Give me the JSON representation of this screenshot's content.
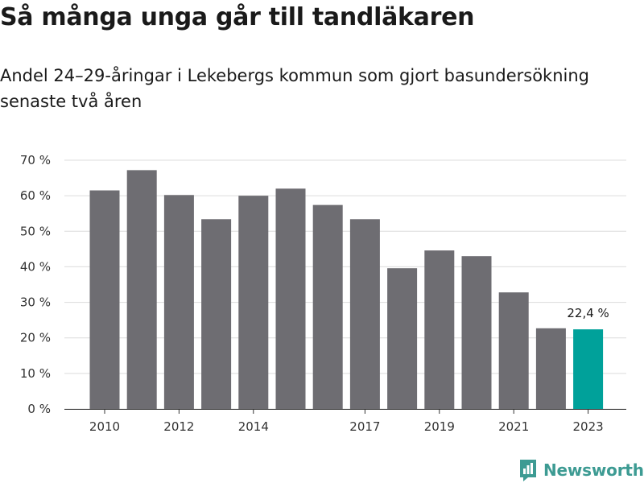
{
  "header": {
    "title": "Så många unga går till tandläkaren",
    "subtitle": "Andel 24–29-åringar i Lekebergs kommun som gjort basundersökning senaste två åren"
  },
  "brand": {
    "name": "Newsworthy",
    "color": "#3d9b93",
    "icon": "newsworthy-logo-icon"
  },
  "chart_data": {
    "type": "bar",
    "title": "Så många unga går till tandläkaren",
    "subtitle": "Andel 24–29-åringar i Lekebergs kommun som gjort basundersökning senaste två åren",
    "xlabel": "",
    "ylabel": "",
    "categories": [
      "2010",
      "2011",
      "2012",
      "2013",
      "2014",
      "2015",
      "2016",
      "2017",
      "2018",
      "2019",
      "2020",
      "2021",
      "2022",
      "2023"
    ],
    "values": [
      61.5,
      67.2,
      60.2,
      53.4,
      60.0,
      62.0,
      57.4,
      53.4,
      39.6,
      44.6,
      43.0,
      32.8,
      22.7,
      22.4
    ],
    "x_tick_labels": [
      "2010",
      "2012",
      "2014",
      "2017",
      "2019",
      "2021",
      "2023"
    ],
    "y_ticks": [
      "0 %",
      "10 %",
      "20 %",
      "30 %",
      "40 %",
      "50 %",
      "60 %",
      "70 %"
    ],
    "ylim": [
      0,
      70
    ],
    "grid": true,
    "bar_color": "#6e6d72",
    "highlight_color": "#00a19a",
    "highlight_index": 13,
    "annotation": {
      "text": "22,4 %",
      "category": "2023"
    }
  }
}
